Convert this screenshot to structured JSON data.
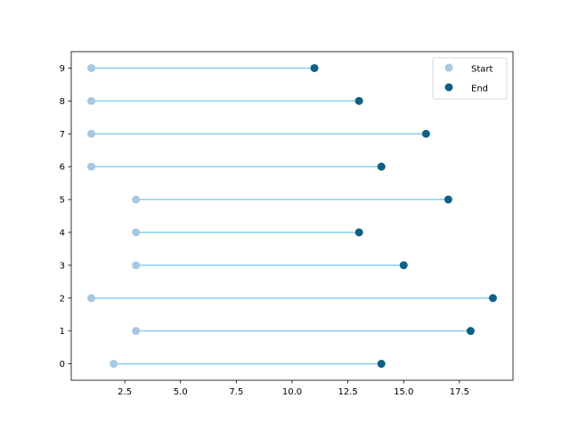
{
  "chart_data": {
    "type": "scatter",
    "subtype": "dumbbell",
    "title": "",
    "xlabel": "",
    "ylabel": "",
    "xlim": [
      0.1,
      19.9
    ],
    "ylim": [
      -0.5,
      9.5
    ],
    "x_ticks": [
      2.5,
      5.0,
      7.5,
      10.0,
      12.5,
      15.0,
      17.5
    ],
    "x_tick_labels": [
      "2.5",
      "5.0",
      "7.5",
      "10.0",
      "12.5",
      "15.0",
      "17.5"
    ],
    "y_ticks": [
      0,
      1,
      2,
      3,
      4,
      5,
      6,
      7,
      8,
      9
    ],
    "y_tick_labels": [
      "0",
      "1",
      "2",
      "3",
      "4",
      "5",
      "6",
      "7",
      "8",
      "9"
    ],
    "grid": false,
    "legend_position": "top-right",
    "colors": {
      "start": "#a6c8e3",
      "end": "#0d6185",
      "connector": "#87ceeb"
    },
    "categories": [
      0,
      1,
      2,
      3,
      4,
      5,
      6,
      7,
      8,
      9
    ],
    "series": [
      {
        "name": "Start",
        "values": [
          2,
          3,
          1,
          3,
          3,
          3,
          1,
          1,
          1,
          1
        ]
      },
      {
        "name": "End",
        "values": [
          14,
          18,
          19,
          15,
          13,
          17,
          14,
          16,
          13,
          11
        ]
      }
    ]
  }
}
